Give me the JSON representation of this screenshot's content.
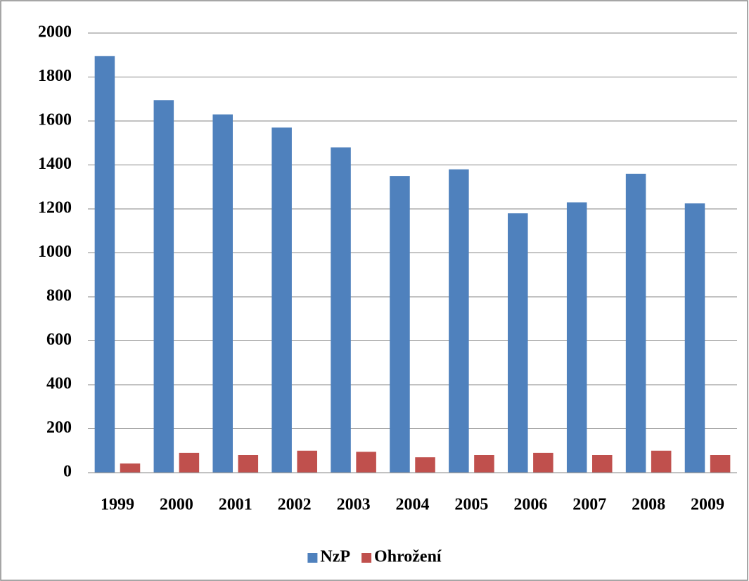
{
  "chart_data": {
    "type": "bar",
    "categories": [
      "1999",
      "2000",
      "2001",
      "2002",
      "2003",
      "2004",
      "2005",
      "2006",
      "2007",
      "2008",
      "2009"
    ],
    "series": [
      {
        "name": "NzP",
        "color": "#4f81bd",
        "values": [
          1895,
          1695,
          1630,
          1570,
          1480,
          1350,
          1380,
          1180,
          1230,
          1360,
          1225
        ]
      },
      {
        "name": "Ohrožení",
        "color": "#c0504d",
        "values": [
          42,
          90,
          80,
          100,
          95,
          70,
          80,
          90,
          80,
          100,
          80
        ]
      }
    ],
    "ylim": [
      0,
      2000
    ],
    "yticks": [
      0,
      200,
      400,
      600,
      800,
      1000,
      1200,
      1400,
      1600,
      1800,
      2000
    ],
    "grid": true,
    "legend": "bottom"
  }
}
